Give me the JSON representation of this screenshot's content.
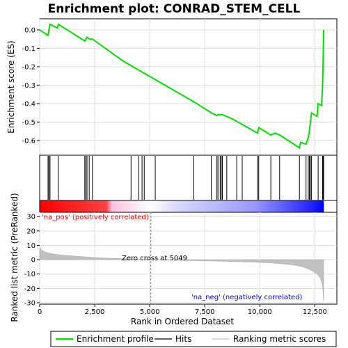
{
  "chart_data": {
    "type": "line",
    "title": "Enrichment plot: CONRAD_STEM_CELL",
    "xlabel": "Rank in Ordered Dataset",
    "ylabel_top": "Enrichment score (ES)",
    "ylabel_bottom": "Ranked list metric (PreRanked)",
    "xlim": [
      0,
      13500
    ],
    "x_ticks": [
      0,
      2500,
      5000,
      7500,
      10000,
      12500
    ],
    "x_tick_labels": [
      "0",
      "2,500",
      "5,000",
      "7,500",
      "10,000",
      "12,500"
    ],
    "es_ylim": [
      -0.68,
      0.06
    ],
    "es_ticks": [
      0.0,
      -0.1,
      -0.2,
      -0.3,
      -0.4,
      -0.5,
      -0.6
    ],
    "es_tick_labels": [
      "0.0",
      "-0.1",
      "-0.2",
      "-0.3",
      "-0.4",
      "-0.5",
      "-0.6"
    ],
    "metric_ylim": [
      -31,
      33
    ],
    "metric_ticks": [
      30,
      20,
      10,
      0,
      -10,
      -20,
      -30
    ],
    "metric_tick_labels": [
      "30",
      "20",
      "10",
      "0",
      "-10",
      "-20",
      "-30"
    ],
    "n_genes": 12900,
    "zero_cross": 5049,
    "series": [
      {
        "name": "Enrichment profile",
        "color": "#00e000",
        "x": [
          0,
          380,
          420,
          470,
          800,
          850,
          2050,
          2100,
          2150,
          2250,
          2400,
          3800,
          7000,
          7800,
          8050,
          8100,
          8300,
          8500,
          8700,
          9000,
          9900,
          9950,
          10500,
          10700,
          10900,
          11800,
          11850,
          12100,
          12200,
          12250,
          12300,
          12350,
          12600,
          12650,
          12800,
          12850,
          12870,
          12900
        ],
        "y": [
          0.0,
          -0.03,
          0.0,
          0.03,
          0.01,
          0.03,
          -0.06,
          -0.05,
          -0.04,
          -0.05,
          -0.05,
          -0.17,
          -0.39,
          -0.45,
          -0.465,
          -0.46,
          -0.46,
          -0.47,
          -0.48,
          -0.5,
          -0.56,
          -0.53,
          -0.57,
          -0.56,
          -0.57,
          -0.64,
          -0.61,
          -0.62,
          -0.585,
          -0.55,
          -0.5,
          -0.45,
          -0.47,
          -0.4,
          -0.41,
          -0.31,
          -0.2,
          0.0
        ]
      }
    ],
    "hits": [
      380,
      420,
      470,
      850,
      2050,
      2100,
      2150,
      2250,
      2400,
      4150,
      4500,
      4650,
      4750,
      5250,
      7000,
      7800,
      8050,
      8100,
      8200,
      8250,
      8300,
      8500,
      8950,
      9200,
      9900,
      9950,
      10500,
      10900,
      11800,
      12100,
      12200,
      12250,
      12300,
      12350,
      12650,
      12850,
      12870,
      12900
    ],
    "metric_x": [
      0,
      100,
      300,
      600,
      1000,
      1500,
      2000,
      2500,
      3000,
      4000,
      5049,
      6000,
      7000,
      8000,
      9000,
      9800,
      10500,
      11000,
      11500,
      11800,
      12000,
      12200,
      12400,
      12600,
      12750,
      12850,
      12900
    ],
    "metric_y": [
      8.5,
      6.5,
      5.0,
      4.0,
      3.2,
      2.6,
      2.0,
      1.5,
      1.1,
      0.5,
      0.0,
      -0.4,
      -0.7,
      -1.0,
      -1.4,
      -1.8,
      -2.3,
      -2.9,
      -3.7,
      -4.5,
      -5.3,
      -6.5,
      -8.0,
      -10.0,
      -13.0,
      -18.0,
      -29.0
    ],
    "annotations": {
      "pos_label": "'na_pos' (positively correlated)",
      "neg_label": "'na_neg' (negatively correlated)",
      "zero_label": "Zero cross at 5049"
    },
    "legend": [
      {
        "label": "Enrichment profile",
        "color": "#00e000"
      },
      {
        "label": "Hits",
        "color": "#000000"
      },
      {
        "label": "Ranking metric scores",
        "color": "#c0c0c0"
      }
    ],
    "colors": {
      "pos": "#ff0000",
      "neg": "#0000ff",
      "metric_fill": "#c0c0c0",
      "grid": "#dcdcdc"
    },
    "grid": true,
    "legend_placement": "bottom"
  }
}
